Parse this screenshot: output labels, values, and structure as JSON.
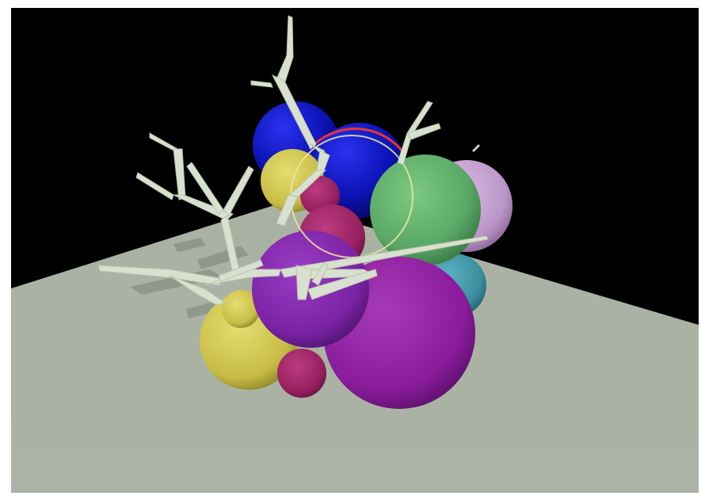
{
  "scene": {
    "background_color": "#000000",
    "ground_color": "#aab2a4",
    "branch_color": "#d9e2d0",
    "sphere_palette": {
      "blue": "#0e14c8",
      "yellow": "#cbc24a",
      "green": "#5fb06a",
      "lilac": "#c19ccf",
      "teal": "#3e95a5",
      "purple": "#8f1da0",
      "violet": "#7d23a6",
      "crimson": "#9b2064",
      "olive_yellow": "#c9c44f"
    },
    "highlight_ring_color": "#f0e6a6",
    "highlight_arc_color": "#ff3b22"
  }
}
